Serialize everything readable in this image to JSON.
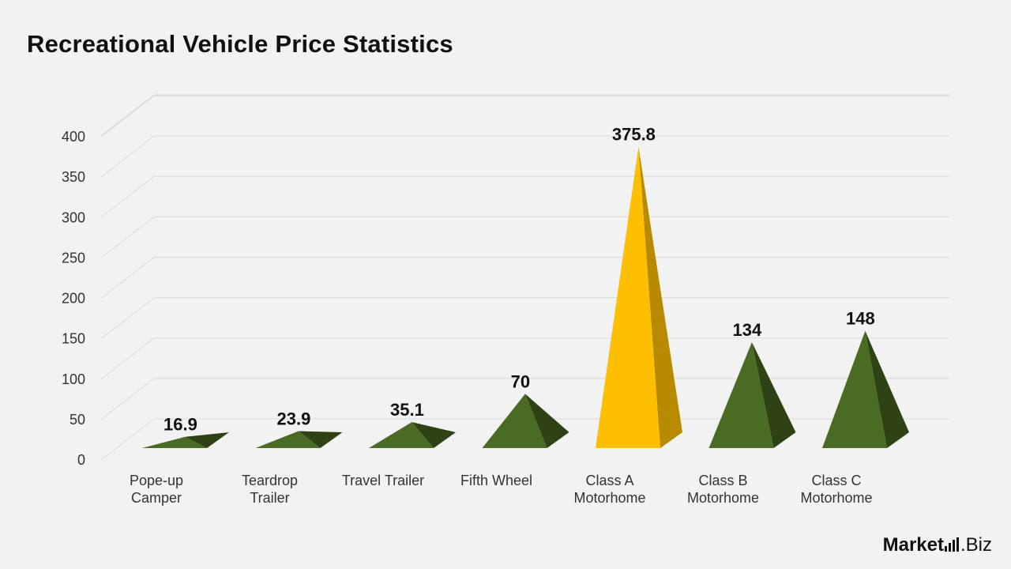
{
  "title": "Recreational Vehicle Price Statistics",
  "brand": {
    "name_bold": "Market",
    "name_rest": ".Biz"
  },
  "colors": {
    "background": "#f2f2f2",
    "green_front": "#4a6b24",
    "green_side": "#2e4216",
    "gold_front": "#fdbf00",
    "gold_side": "#b78a00",
    "grid": "#d9d9d9"
  },
  "chart_data": {
    "type": "bar",
    "style": "3d-pyramid",
    "title": "Recreational Vehicle Price Statistics",
    "categories": [
      [
        "Pope-up",
        "Camper"
      ],
      [
        "Teardrop",
        "Trailer"
      ],
      [
        "Travel Trailer"
      ],
      [
        "Fifth Wheel"
      ],
      [
        "Class A",
        "Motorhome"
      ],
      [
        "Class B",
        "Motorhome"
      ],
      [
        "Class C",
        "Motorhome"
      ]
    ],
    "values": [
      16.9,
      23.9,
      35.1,
      70,
      375.8,
      134,
      148
    ],
    "value_labels": [
      "16.9",
      "23.9",
      "35.1",
      "70",
      "375.8",
      "134",
      "148"
    ],
    "highlight_index": 4,
    "yticks": [
      "0",
      "50",
      "100",
      "150",
      "200",
      "250",
      "300",
      "350",
      "400"
    ],
    "ylim": [
      0,
      400
    ],
    "grid": true,
    "legend": false
  }
}
